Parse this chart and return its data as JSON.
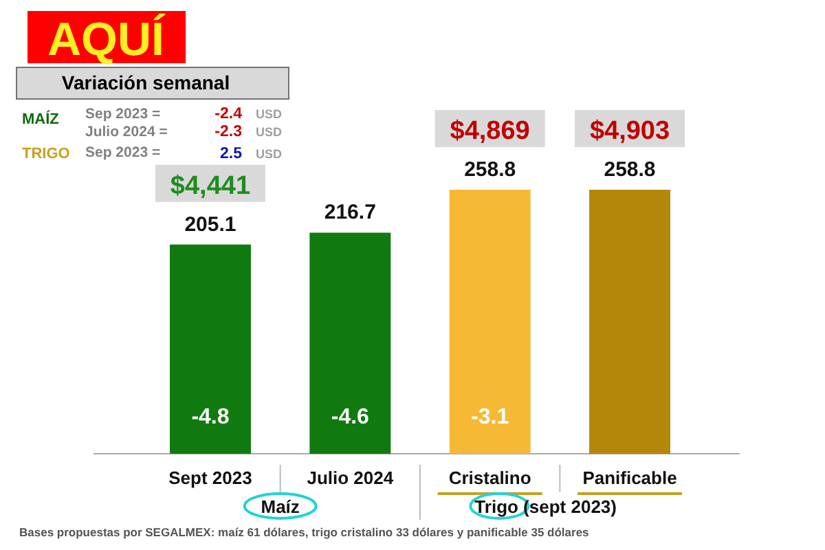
{
  "chart_data": {
    "type": "bar",
    "title": "AQUÍ",
    "categories": [
      "Sept 2023",
      "Julio 2024",
      "Cristalino",
      "Panificable"
    ],
    "values": [
      205.1,
      216.7,
      258.8,
      258.8
    ],
    "colors": [
      "#107a10",
      "#107a10",
      "#f5b935",
      "#b3870a"
    ],
    "data_labels": true,
    "annotations": [
      "Variación semanal",
      "MAÍZ",
      "Sep 2023  =",
      "-2.4",
      "USD",
      "Julio 2024 =",
      "-2.3",
      "USD",
      "TRIGO",
      "Sep 2023 =",
      "2.5",
      "USD",
      "Maíz",
      "Trigo (sept 2023)",
      "Bases propuestas por SEGALMEX: maíz 61 dólares, trigo cristalino 33 dólares y panificable 35 dólares",
      "$4,441",
      "$4,869",
      "$4,903",
      "-4.8",
      "-4.6",
      "-3.1"
    ]
  }
}
